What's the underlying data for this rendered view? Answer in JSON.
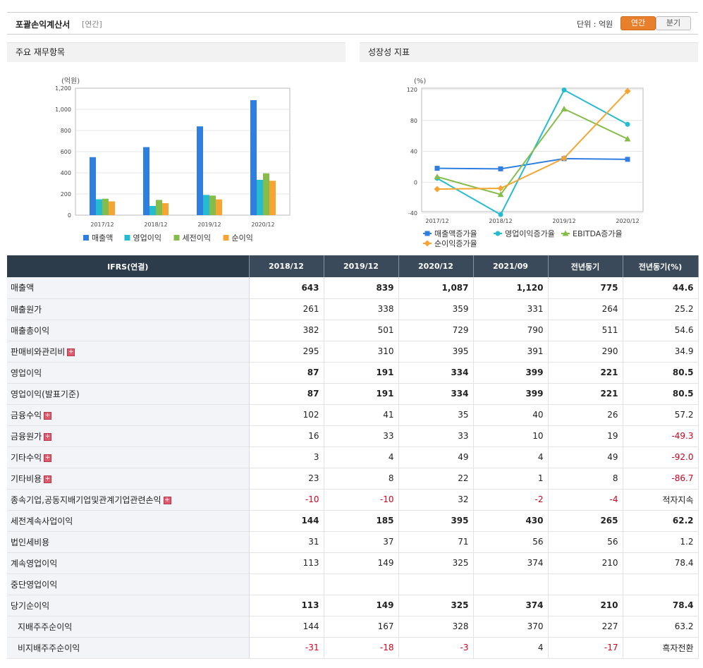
{
  "header": {
    "title": "포괄손익계산서",
    "sub": "[연간]",
    "unit": "단위 : 억원",
    "toggle_annual": "연간",
    "toggle_quarter": "분기"
  },
  "left_panel": {
    "title": "주요 재무항목"
  },
  "right_panel": {
    "title": "성장성 지표"
  },
  "colors": {
    "sales": "#2f7fe0",
    "op": "#26bcd0",
    "pretax": "#86bd4a",
    "net": "#f5a632",
    "accent": "#e87f2a"
  },
  "chart_data": [
    {
      "type": "bar",
      "ylabel": "(억원)",
      "categories": [
        "2017/12",
        "2018/12",
        "2019/12",
        "2020/12"
      ],
      "ylim": [
        0,
        1200
      ],
      "yticks": [
        "0",
        "200",
        "400",
        "600",
        "800",
        "1,000",
        "1,200"
      ],
      "series": [
        {
          "name": "매출액",
          "values": [
            548,
            643,
            839,
            1087
          ]
        },
        {
          "name": "영업이익",
          "values": [
            150,
            87,
            191,
            334
          ]
        },
        {
          "name": "세전이익",
          "values": [
            155,
            144,
            185,
            395
          ]
        },
        {
          "name": "순이익",
          "values": [
            130,
            113,
            149,
            325
          ]
        }
      ],
      "legend": "bottom"
    },
    {
      "type": "line",
      "ylabel": "(%)",
      "categories": [
        "2017/12",
        "2018/12",
        "2019/12",
        "2020/12"
      ],
      "ylim": [
        -40,
        120
      ],
      "yticks": [
        "-40",
        "0",
        "40",
        "80",
        "120"
      ],
      "series": [
        {
          "name": "매출액증가율",
          "values": [
            18,
            17.3,
            30.5,
            29.6
          ]
        },
        {
          "name": "영업이익증가율",
          "values": [
            5,
            -42,
            119.5,
            75
          ]
        },
        {
          "name": "EBITDA증가율",
          "values": [
            7,
            -16,
            95,
            56
          ]
        },
        {
          "name": "순이익증가율",
          "values": [
            -9,
            -8,
            31,
            118
          ]
        }
      ],
      "legend": "bottom"
    }
  ],
  "table": {
    "headers": [
      "IFRS(연결)",
      "2018/12",
      "2019/12",
      "2020/12",
      "2021/09",
      "전년동기",
      "전년동기(%)"
    ],
    "rows": [
      {
        "label": "매출액",
        "bold": true,
        "cells": [
          "643",
          "839",
          "1,087",
          "1,120",
          "775",
          "44.6"
        ]
      },
      {
        "label": "매출원가",
        "cells": [
          "261",
          "338",
          "359",
          "331",
          "264",
          "25.2"
        ]
      },
      {
        "label": "매출총이익",
        "cells": [
          "382",
          "501",
          "729",
          "790",
          "511",
          "54.6"
        ]
      },
      {
        "label": "판매비와관리비",
        "plus": true,
        "cells": [
          "295",
          "310",
          "395",
          "391",
          "290",
          "34.9"
        ]
      },
      {
        "label": "영업이익",
        "bold": true,
        "cells": [
          "87",
          "191",
          "334",
          "399",
          "221",
          "80.5"
        ]
      },
      {
        "label": "영업이익(발표기준)",
        "bold": true,
        "cells": [
          "87",
          "191",
          "334",
          "399",
          "221",
          "80.5"
        ]
      },
      {
        "label": "금융수익",
        "plus": true,
        "cells": [
          "102",
          "41",
          "35",
          "40",
          "26",
          "57.2"
        ]
      },
      {
        "label": "금융원가",
        "plus": true,
        "cells": [
          "16",
          "33",
          "33",
          "10",
          "19",
          "-49.3"
        ]
      },
      {
        "label": "기타수익",
        "plus": true,
        "cells": [
          "3",
          "4",
          "49",
          "4",
          "49",
          "-92.0"
        ]
      },
      {
        "label": "기타비용",
        "plus": true,
        "cells": [
          "23",
          "8",
          "22",
          "1",
          "8",
          "-86.7"
        ]
      },
      {
        "label": "종속기업,공동지배기업및관계기업관련손익",
        "plus": true,
        "cells": [
          "-10",
          "-10",
          "32",
          "-2",
          "-4",
          "적자지속"
        ]
      },
      {
        "label": "세전계속사업이익",
        "bold": true,
        "cells": [
          "144",
          "185",
          "395",
          "430",
          "265",
          "62.2"
        ]
      },
      {
        "label": "법인세비용",
        "cells": [
          "31",
          "37",
          "71",
          "56",
          "56",
          "1.2"
        ]
      },
      {
        "label": "계속영업이익",
        "cells": [
          "113",
          "149",
          "325",
          "374",
          "210",
          "78.4"
        ]
      },
      {
        "label": "중단영업이익",
        "cells": [
          "",
          "",
          "",
          "",
          "",
          ""
        ]
      },
      {
        "label": "당기순이익",
        "bold": true,
        "cells": [
          "113",
          "149",
          "325",
          "374",
          "210",
          "78.4"
        ]
      },
      {
        "label": "지배주주순이익",
        "indent": true,
        "cells": [
          "144",
          "167",
          "328",
          "370",
          "227",
          "63.2"
        ]
      },
      {
        "label": "비지배주주순이익",
        "indent": true,
        "cells": [
          "-31",
          "-18",
          "-3",
          "4",
          "-17",
          "흑자전환"
        ]
      }
    ]
  }
}
